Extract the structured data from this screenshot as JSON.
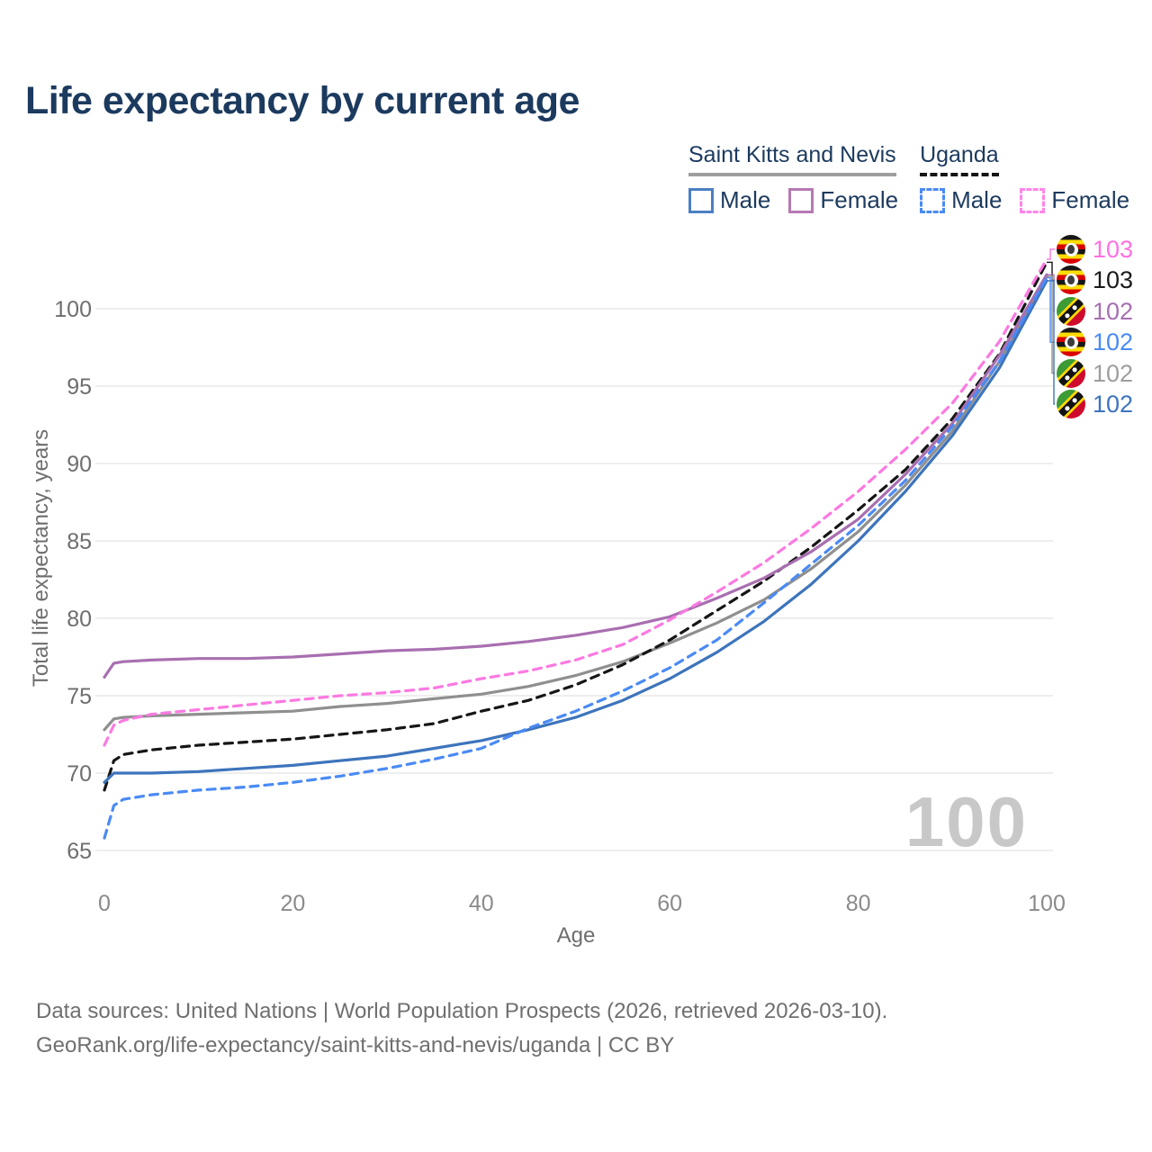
{
  "page": {
    "title": "Life expectancy by current age"
  },
  "legend": {
    "groups": [
      {
        "label": "Saint Kitts and Nevis",
        "underline_style": "solid",
        "underline_color": "#9e9e9e",
        "items": [
          {
            "label": "Male",
            "swatch_color": "#4b7fc3",
            "dashed": false
          },
          {
            "label": "Female",
            "swatch_color": "#b579b2",
            "dashed": false
          }
        ]
      },
      {
        "label": "Uganda",
        "underline_style": "dashed",
        "underline_color": "#141414",
        "items": [
          {
            "label": "Male",
            "swatch_color": "#4a8af4",
            "dashed": true
          },
          {
            "label": "Female",
            "swatch_color": "#ff85e8",
            "dashed": true
          }
        ]
      }
    ]
  },
  "chart_data": {
    "type": "line",
    "title": "Life expectancy by current age",
    "xlabel": "Age",
    "ylabel": "Total life expectancy, years",
    "xlim": [
      0,
      100
    ],
    "ylim": [
      63.5,
      105
    ],
    "x_ticks": [
      0,
      20,
      40,
      60,
      80,
      100
    ],
    "y_ticks": [
      65,
      70,
      75,
      80,
      85,
      90,
      95,
      100
    ],
    "grid": "horizontal",
    "legend_position": "top-right",
    "watermark": "100",
    "ages": [
      0,
      1,
      2,
      5,
      10,
      15,
      20,
      25,
      30,
      35,
      40,
      45,
      50,
      55,
      60,
      65,
      70,
      75,
      80,
      85,
      90,
      95,
      100
    ],
    "series": [
      {
        "id": "skn_total",
        "name": "Saint Kitts and Nevis",
        "sex": "total",
        "color": "#8f8f8f",
        "dash": false,
        "values": [
          72.8,
          73.5,
          73.6,
          73.7,
          73.8,
          73.9,
          74.0,
          74.3,
          74.5,
          74.8,
          75.1,
          75.6,
          76.3,
          77.2,
          78.4,
          79.7,
          81.2,
          83.2,
          85.6,
          88.6,
          92.1,
          96.6,
          102.1
        ]
      },
      {
        "id": "uga_total",
        "name": "Uganda",
        "sex": "total",
        "color": "#161616",
        "dash": true,
        "values": [
          68.9,
          70.8,
          71.2,
          71.5,
          71.8,
          72.0,
          72.2,
          72.5,
          72.8,
          73.2,
          74.0,
          74.7,
          75.7,
          77.0,
          78.6,
          80.5,
          82.4,
          84.6,
          87.0,
          89.6,
          92.9,
          97.1,
          103.0
        ]
      },
      {
        "id": "skn_female",
        "name": "Saint Kitts and Nevis — Female",
        "sex": "female",
        "color": "#a86fb0",
        "dash": false,
        "values": [
          76.2,
          77.1,
          77.2,
          77.3,
          77.4,
          77.4,
          77.5,
          77.7,
          77.9,
          78.0,
          78.2,
          78.5,
          78.9,
          79.4,
          80.1,
          81.3,
          82.6,
          84.3,
          86.4,
          89.3,
          92.6,
          97.0,
          102.2
        ]
      },
      {
        "id": "skn_male",
        "name": "Saint Kitts and Nevis — Male",
        "sex": "male",
        "color": "#3d74bc",
        "dash": false,
        "values": [
          69.4,
          70.0,
          70.0,
          70.0,
          70.1,
          70.3,
          70.5,
          70.8,
          71.1,
          71.6,
          72.1,
          72.8,
          73.6,
          74.7,
          76.1,
          77.8,
          79.8,
          82.2,
          85.0,
          88.2,
          91.8,
          96.2,
          101.8
        ]
      },
      {
        "id": "uga_female",
        "name": "Uganda — Female",
        "sex": "female",
        "color": "#fb79e1",
        "dash": true,
        "values": [
          71.8,
          73.1,
          73.4,
          73.8,
          74.1,
          74.4,
          74.7,
          75.0,
          75.2,
          75.5,
          76.1,
          76.6,
          77.3,
          78.3,
          79.9,
          81.7,
          83.6,
          85.8,
          88.2,
          90.9,
          93.9,
          97.9,
          103.2
        ]
      },
      {
        "id": "uga_male",
        "name": "Uganda — Male",
        "sex": "male",
        "color": "#4a8af4",
        "dash": true,
        "values": [
          65.8,
          67.9,
          68.3,
          68.6,
          68.9,
          69.1,
          69.4,
          69.8,
          70.3,
          70.9,
          71.6,
          72.9,
          74.0,
          75.3,
          76.8,
          78.6,
          81.0,
          83.5,
          86.0,
          88.9,
          92.4,
          96.6,
          102.0
        ]
      }
    ],
    "end_labels": [
      {
        "value": "103",
        "series": "uga_female",
        "flag": "uganda-flag-icon",
        "color": "#ff70e1"
      },
      {
        "value": "103",
        "series": "uga_total",
        "flag": "uganda-flag-icon",
        "color": "#1a1a1a"
      },
      {
        "value": "102",
        "series": "skn_female",
        "flag": "saint-kitts-and-nevis-flag-icon",
        "color": "#a76fb2"
      },
      {
        "value": "102",
        "series": "uga_male",
        "flag": "uganda-flag-icon",
        "color": "#4a8af4"
      },
      {
        "value": "102",
        "series": "skn_total",
        "flag": "saint-kitts-and-nevis-flag-icon",
        "color": "#9e9e9e"
      },
      {
        "value": "102",
        "series": "skn_male",
        "flag": "saint-kitts-and-nevis-flag-icon",
        "color": "#3d74bc"
      }
    ]
  },
  "footer": {
    "line1": "Data sources: United Nations | World Population Prospects (2026, retrieved 2026-03-10).",
    "line2": "GeoRank.org/life-expectancy/saint-kitts-and-nevis/uganda | CC BY"
  }
}
